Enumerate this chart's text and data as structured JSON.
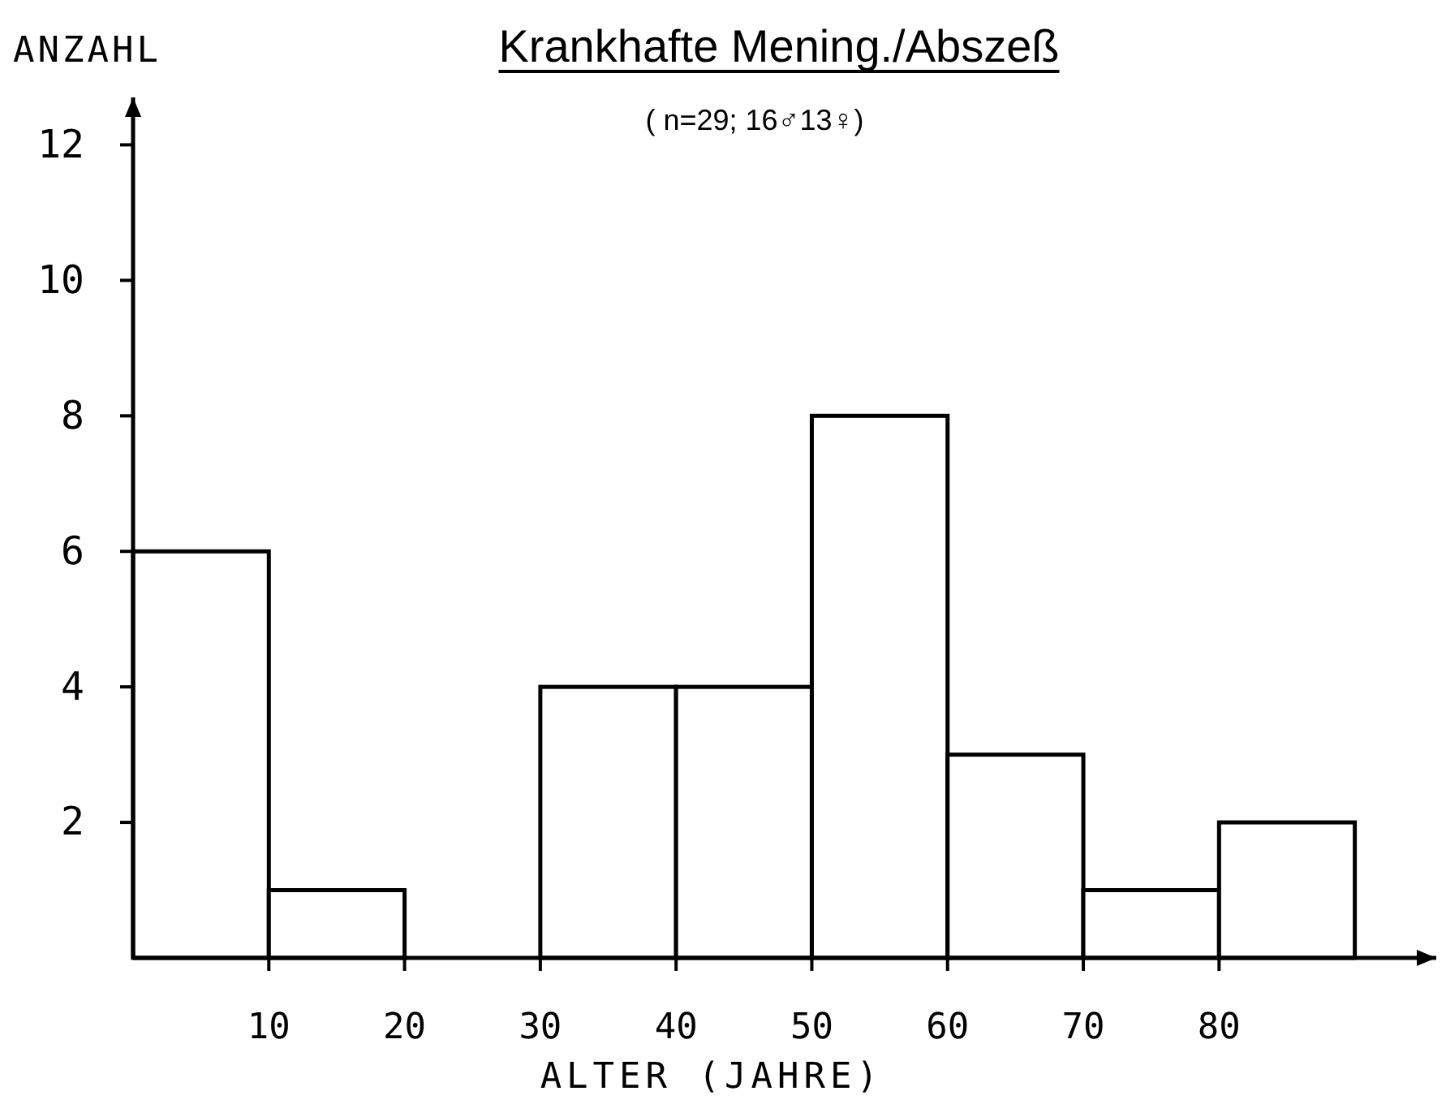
{
  "chart_data": {
    "type": "histogram",
    "title": "Krankhafte Mening./Abszeß",
    "subtitle": "( n=29; 16♂13♀)",
    "xlabel": "ALTER (JAHRE)",
    "ylabel": "ANZAHL",
    "bins": [
      0,
      10,
      20,
      30,
      40,
      50,
      60,
      70,
      80,
      90
    ],
    "values": [
      6,
      1,
      0,
      4,
      4,
      8,
      3,
      1,
      2
    ],
    "color": "#ffffff",
    "xlim": [
      0,
      96
    ],
    "ylim": [
      0,
      12.7
    ],
    "xticks": [
      10,
      20,
      30,
      40,
      50,
      60,
      70,
      80
    ],
    "yticks": [
      2,
      4,
      6,
      8,
      10,
      12
    ]
  }
}
